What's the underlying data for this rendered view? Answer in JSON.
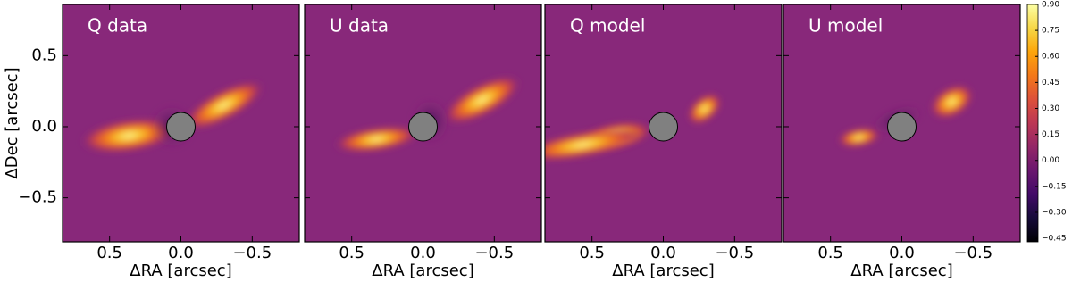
{
  "chart_data": [
    {
      "type": "heatmap",
      "title": "Q data",
      "xlabel": "ΔRA [arcsec]",
      "ylabel": "ΔDec [arcsec]",
      "xlim": [
        0.83,
        -0.83
      ],
      "ylim": [
        -0.81,
        0.86
      ],
      "xticks": [
        0.5,
        {
          "value": 0,
          "label": "0.0"
        },
        {
          "value": -0.5,
          "label": "−0.5"
        }
      ],
      "yticks": [
        {
          "value": -0.5,
          "label": "−0.5"
        },
        {
          "value": 0,
          "label": "0.0"
        },
        0.5
      ]
    },
    {
      "type": "heatmap",
      "title": "U data",
      "xlabel": "ΔRA [arcsec]",
      "xlim": [
        0.83,
        -0.83
      ],
      "xticks": [
        0.5,
        {
          "value": 0,
          "label": "0.0"
        },
        {
          "value": -0.5,
          "label": "−0.5"
        }
      ]
    },
    {
      "type": "heatmap",
      "title": "Q model",
      "xlabel": "ΔRA [arcsec]",
      "xlim": [
        0.83,
        -0.83
      ],
      "xticks": [
        0.5,
        {
          "value": 0,
          "label": "0.0"
        },
        {
          "value": -0.5,
          "label": "−0.5"
        }
      ]
    },
    {
      "type": "heatmap",
      "title": "U model",
      "xlabel": "ΔRA [arcsec]",
      "xlim": [
        0.83,
        -0.83
      ],
      "xticks": [
        0.5,
        {
          "value": 0,
          "label": "0.0"
        },
        {
          "value": -0.5,
          "label": "−0.5"
        }
      ]
    }
  ],
  "colorbar": {
    "clim": [
      -0.47,
      0.9
    ],
    "ticks": [
      {
        "value": 0.9,
        "label": "0.90"
      },
      0.75,
      {
        "value": 0.6,
        "label": "0.60"
      },
      0.45,
      {
        "value": 0.3,
        "label": "0.30"
      },
      0.15,
      {
        "value": 0,
        "label": "0.00"
      },
      {
        "value": -0.15,
        "label": "−0.15"
      },
      {
        "value": -0.3,
        "label": "−0.30"
      },
      {
        "value": -0.45,
        "label": "−0.45"
      }
    ]
  }
}
